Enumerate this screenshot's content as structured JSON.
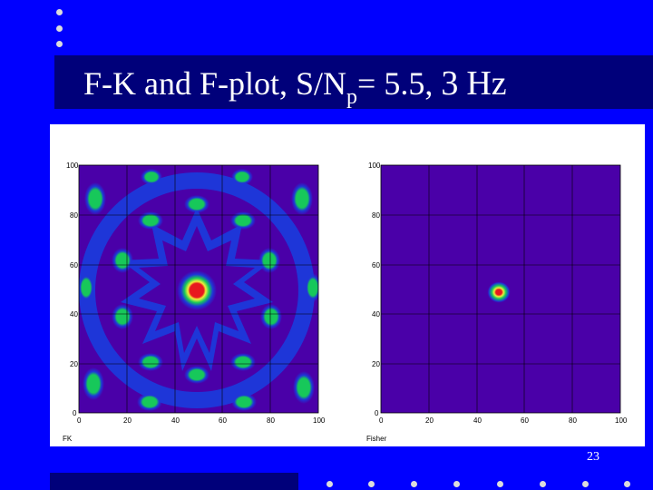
{
  "slide": {
    "title_prefix": "F-K and F-plot,  S/N",
    "title_sub": "p",
    "title_mid": "= 5.5, ",
    "title_num": "3",
    "title_unit": "Hz",
    "page_number": "23"
  },
  "plots": [
    {
      "label": "FK",
      "x_ticks": [
        "0",
        "20",
        "40",
        "60",
        "80",
        "100"
      ],
      "y_ticks": [
        "100",
        "80",
        "60",
        "40",
        "20",
        "0"
      ]
    },
    {
      "label": "Fisher",
      "x_ticks": [
        "0",
        "20",
        "40",
        "60",
        "80",
        "100"
      ],
      "y_ticks": [
        "100",
        "80",
        "60",
        "40",
        "20",
        "0"
      ]
    }
  ],
  "colors": {
    "background": "#0000ff",
    "title_bar": "#00007a",
    "plot_background": "#4a00a8",
    "ring_blue": "#1e36d8",
    "peak_green": "#17c85a",
    "peak_yellow": "#f2ef3a",
    "peak_red": "#e8181e"
  }
}
